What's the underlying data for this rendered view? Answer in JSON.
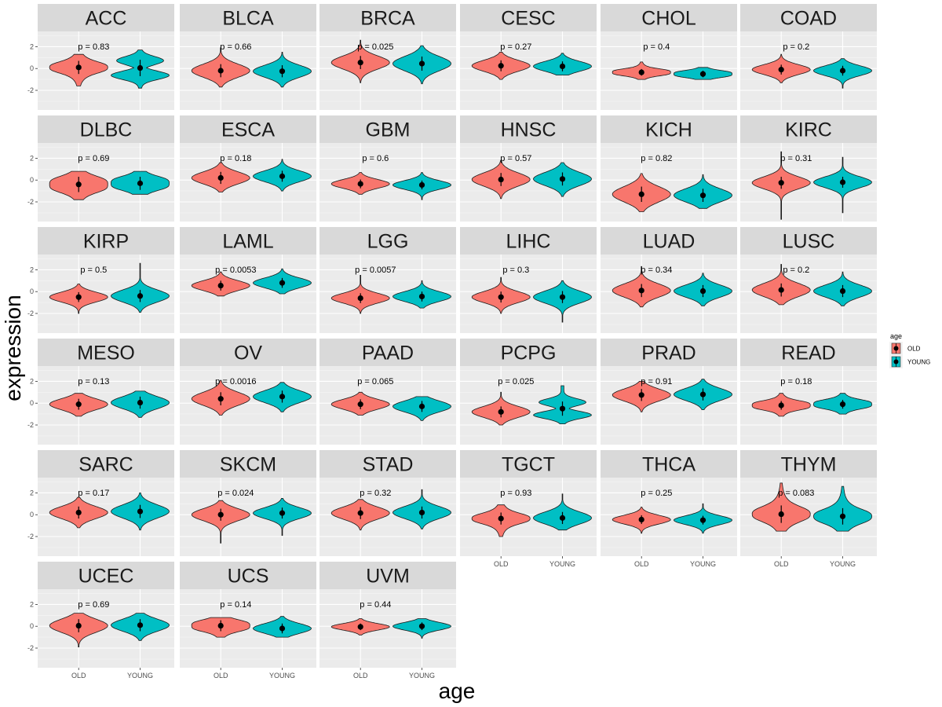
{
  "chart_data": {
    "type": "violin",
    "xlabel": "age",
    "ylabel": "expression",
    "ylim": [
      -3.8,
      3.4
    ],
    "yticks": [
      -2,
      0,
      2
    ],
    "ytick_labels": [
      "-2",
      "0",
      "2"
    ],
    "groups": [
      "OLD",
      "YOUNG"
    ],
    "legend": {
      "title": "age",
      "position": "right",
      "items": [
        {
          "label": "OLD",
          "color": "#F8766D"
        },
        {
          "label": "YOUNG",
          "color": "#00BFC4"
        }
      ]
    },
    "panels": [
      {
        "name": "ACC",
        "p": "p = 0.83",
        "old": {
          "mean": 0.1,
          "sd": 0.6,
          "lo": -1.6,
          "hi": 1.3,
          "shape": "wide"
        },
        "young": {
          "mean": 0.05,
          "sd": 0.75,
          "lo": -1.8,
          "hi": 1.7,
          "shape": "bimodal"
        }
      },
      {
        "name": "BLCA",
        "p": "p = 0.66",
        "old": {
          "mean": -0.2,
          "sd": 0.6,
          "lo": -1.7,
          "hi": 1.9,
          "shape": "norm"
        },
        "young": {
          "mean": -0.25,
          "sd": 0.55,
          "lo": -1.7,
          "hi": 1.5,
          "shape": "norm"
        }
      },
      {
        "name": "BRCA",
        "p": "p = 0.025",
        "old": {
          "mean": 0.55,
          "sd": 0.6,
          "lo": -1.3,
          "hi": 2.6,
          "shape": "norm"
        },
        "young": {
          "mean": 0.45,
          "sd": 0.65,
          "lo": -1.4,
          "hi": 2.1,
          "shape": "norm"
        }
      },
      {
        "name": "CESC",
        "p": "p = 0.27",
        "old": {
          "mean": 0.25,
          "sd": 0.5,
          "lo": -1.0,
          "hi": 1.5,
          "shape": "norm"
        },
        "young": {
          "mean": 0.2,
          "sd": 0.45,
          "lo": -0.6,
          "hi": 1.4,
          "shape": "norm"
        }
      },
      {
        "name": "CHOL",
        "p": "p = 0.4",
        "old": {
          "mean": -0.35,
          "sd": 0.3,
          "lo": -1.0,
          "hi": 0.6,
          "shape": "flat"
        },
        "young": {
          "mean": -0.5,
          "sd": 0.3,
          "lo": -1.0,
          "hi": 0.1,
          "shape": "flat"
        }
      },
      {
        "name": "COAD",
        "p": "p = 0.2",
        "old": {
          "mean": -0.1,
          "sd": 0.45,
          "lo": -1.3,
          "hi": 1.3,
          "shape": "norm"
        },
        "young": {
          "mean": -0.2,
          "sd": 0.45,
          "lo": -1.8,
          "hi": 0.9,
          "shape": "norm"
        }
      },
      {
        "name": "DLBC",
        "p": "p = 0.69",
        "old": {
          "mean": -0.4,
          "sd": 0.7,
          "lo": -1.8,
          "hi": 0.8,
          "shape": "flat"
        },
        "young": {
          "mean": -0.3,
          "sd": 0.6,
          "lo": -1.3,
          "hi": 0.8,
          "shape": "flat"
        }
      },
      {
        "name": "ESCA",
        "p": "p = 0.18",
        "old": {
          "mean": 0.2,
          "sd": 0.55,
          "lo": -1.1,
          "hi": 1.6,
          "shape": "norm"
        },
        "young": {
          "mean": 0.35,
          "sd": 0.5,
          "lo": -1.0,
          "hi": 1.9,
          "shape": "norm"
        }
      },
      {
        "name": "GBM",
        "p": "p = 0.6",
        "old": {
          "mean": -0.35,
          "sd": 0.4,
          "lo": -1.3,
          "hi": 0.7,
          "shape": "norm"
        },
        "young": {
          "mean": -0.45,
          "sd": 0.4,
          "lo": -1.8,
          "hi": 0.7,
          "shape": "norm"
        }
      },
      {
        "name": "HNSC",
        "p": "p = 0.57",
        "old": {
          "mean": 0.05,
          "sd": 0.6,
          "lo": -1.7,
          "hi": 1.8,
          "shape": "norm"
        },
        "young": {
          "mean": 0.1,
          "sd": 0.6,
          "lo": -1.5,
          "hi": 1.6,
          "shape": "norm"
        }
      },
      {
        "name": "KICH",
        "p": "p = 0.82",
        "old": {
          "mean": -1.3,
          "sd": 0.7,
          "lo": -2.9,
          "hi": 0.6,
          "shape": "norm"
        },
        "young": {
          "mean": -1.4,
          "sd": 0.6,
          "lo": -2.6,
          "hi": 0.5,
          "shape": "norm"
        }
      },
      {
        "name": "KIRC",
        "p": "p = 0.31",
        "old": {
          "mean": -0.25,
          "sd": 0.55,
          "lo": -3.6,
          "hi": 2.6,
          "shape": "norm"
        },
        "young": {
          "mean": -0.2,
          "sd": 0.5,
          "lo": -3.0,
          "hi": 2.1,
          "shape": "norm"
        }
      },
      {
        "name": "KIRP",
        "p": "p = 0.5",
        "old": {
          "mean": -0.5,
          "sd": 0.45,
          "lo": -2.0,
          "hi": 0.7,
          "shape": "norm"
        },
        "young": {
          "mean": -0.4,
          "sd": 0.55,
          "lo": -1.9,
          "hi": 2.6,
          "shape": "norm"
        }
      },
      {
        "name": "LAML",
        "p": "p = 0.0053",
        "old": {
          "mean": 0.55,
          "sd": 0.45,
          "lo": -0.4,
          "hi": 1.8,
          "shape": "norm"
        },
        "young": {
          "mean": 0.8,
          "sd": 0.45,
          "lo": -0.2,
          "hi": 2.1,
          "shape": "norm"
        }
      },
      {
        "name": "LGG",
        "p": "p = 0.0057",
        "old": {
          "mean": -0.6,
          "sd": 0.45,
          "lo": -2.0,
          "hi": 1.5,
          "shape": "norm"
        },
        "young": {
          "mean": -0.45,
          "sd": 0.45,
          "lo": -1.5,
          "hi": 1.0,
          "shape": "norm"
        }
      },
      {
        "name": "LIHC",
        "p": "p = 0.3",
        "old": {
          "mean": -0.5,
          "sd": 0.5,
          "lo": -2.0,
          "hi": 1.3,
          "shape": "norm"
        },
        "young": {
          "mean": -0.5,
          "sd": 0.55,
          "lo": -2.8,
          "hi": 1.0,
          "shape": "norm"
        }
      },
      {
        "name": "LUAD",
        "p": "p = 0.34",
        "old": {
          "mean": 0.1,
          "sd": 0.6,
          "lo": -1.4,
          "hi": 2.3,
          "shape": "norm"
        },
        "young": {
          "mean": 0.05,
          "sd": 0.55,
          "lo": -1.3,
          "hi": 1.7,
          "shape": "norm"
        }
      },
      {
        "name": "LUSC",
        "p": "p = 0.2",
        "old": {
          "mean": 0.15,
          "sd": 0.6,
          "lo": -1.2,
          "hi": 2.5,
          "shape": "norm"
        },
        "young": {
          "mean": 0.05,
          "sd": 0.55,
          "lo": -1.3,
          "hi": 1.8,
          "shape": "norm"
        }
      },
      {
        "name": "MESO",
        "p": "p = 0.13",
        "old": {
          "mean": -0.1,
          "sd": 0.5,
          "lo": -1.2,
          "hi": 0.9,
          "shape": "norm"
        },
        "young": {
          "mean": 0.05,
          "sd": 0.55,
          "lo": -1.3,
          "hi": 1.1,
          "shape": "norm"
        }
      },
      {
        "name": "OV",
        "p": "p = 0.0016",
        "old": {
          "mean": 0.4,
          "sd": 0.6,
          "lo": -1.1,
          "hi": 2.1,
          "shape": "norm"
        },
        "young": {
          "mean": 0.6,
          "sd": 0.55,
          "lo": -0.8,
          "hi": 1.9,
          "shape": "norm"
        }
      },
      {
        "name": "PAAD",
        "p": "p = 0.065",
        "old": {
          "mean": -0.1,
          "sd": 0.45,
          "lo": -1.1,
          "hi": 1.0,
          "shape": "norm"
        },
        "young": {
          "mean": -0.3,
          "sd": 0.5,
          "lo": -1.6,
          "hi": 0.6,
          "shape": "norm"
        }
      },
      {
        "name": "PCPG",
        "p": "p = 0.025",
        "old": {
          "mean": -0.8,
          "sd": 0.5,
          "lo": -2.0,
          "hi": 1.0,
          "shape": "norm"
        },
        "young": {
          "mean": -0.5,
          "sd": 0.65,
          "lo": -1.9,
          "hi": 1.6,
          "shape": "bimodal"
        }
      },
      {
        "name": "PRAD",
        "p": "p = 0.91",
        "old": {
          "mean": 0.75,
          "sd": 0.55,
          "lo": -0.8,
          "hi": 2.0,
          "shape": "norm"
        },
        "young": {
          "mean": 0.8,
          "sd": 0.55,
          "lo": -0.6,
          "hi": 2.2,
          "shape": "norm"
        }
      },
      {
        "name": "READ",
        "p": "p = 0.18",
        "old": {
          "mean": -0.2,
          "sd": 0.4,
          "lo": -1.2,
          "hi": 0.9,
          "shape": "flat"
        },
        "young": {
          "mean": -0.1,
          "sd": 0.4,
          "lo": -1.0,
          "hi": 0.9,
          "shape": "flat"
        }
      },
      {
        "name": "SARC",
        "p": "p = 0.17",
        "old": {
          "mean": 0.2,
          "sd": 0.55,
          "lo": -1.2,
          "hi": 1.6,
          "shape": "norm"
        },
        "young": {
          "mean": 0.3,
          "sd": 0.6,
          "lo": -1.4,
          "hi": 2.0,
          "shape": "norm"
        }
      },
      {
        "name": "SKCM",
        "p": "p = 0.024",
        "old": {
          "mean": 0.0,
          "sd": 0.55,
          "lo": -2.6,
          "hi": 1.3,
          "shape": "norm"
        },
        "young": {
          "mean": 0.15,
          "sd": 0.5,
          "lo": -1.9,
          "hi": 1.5,
          "shape": "norm"
        }
      },
      {
        "name": "STAD",
        "p": "p = 0.32",
        "old": {
          "mean": 0.15,
          "sd": 0.55,
          "lo": -1.4,
          "hi": 1.4,
          "shape": "norm"
        },
        "young": {
          "mean": 0.2,
          "sd": 0.55,
          "lo": -1.3,
          "hi": 2.3,
          "shape": "norm"
        }
      },
      {
        "name": "TGCT",
        "p": "p = 0.93",
        "old": {
          "mean": -0.35,
          "sd": 0.55,
          "lo": -2.0,
          "hi": 0.9,
          "shape": "wide"
        },
        "young": {
          "mean": -0.3,
          "sd": 0.55,
          "lo": -1.4,
          "hi": 1.9,
          "shape": "norm"
        }
      },
      {
        "name": "THCA",
        "p": "p = 0.25",
        "old": {
          "mean": -0.45,
          "sd": 0.4,
          "lo": -1.7,
          "hi": 0.7,
          "shape": "norm"
        },
        "young": {
          "mean": -0.5,
          "sd": 0.4,
          "lo": -1.7,
          "hi": 1.0,
          "shape": "norm"
        }
      },
      {
        "name": "THYM",
        "p": "p = 0.083",
        "old": {
          "mean": 0.05,
          "sd": 0.8,
          "lo": -1.5,
          "hi": 2.9,
          "shape": "wide"
        },
        "young": {
          "mean": -0.15,
          "sd": 0.75,
          "lo": -1.5,
          "hi": 2.6,
          "shape": "wide"
        }
      },
      {
        "name": "UCEC",
        "p": "p = 0.69",
        "old": {
          "mean": 0.05,
          "sd": 0.6,
          "lo": -1.9,
          "hi": 1.2,
          "shape": "norm"
        },
        "young": {
          "mean": 0.1,
          "sd": 0.55,
          "lo": -1.3,
          "hi": 1.2,
          "shape": "norm"
        }
      },
      {
        "name": "UCS",
        "p": "p = 0.14",
        "old": {
          "mean": 0.05,
          "sd": 0.5,
          "lo": -1.0,
          "hi": 0.8,
          "shape": "flat"
        },
        "young": {
          "mean": -0.2,
          "sd": 0.45,
          "lo": -1.0,
          "hi": 0.9,
          "shape": "norm"
        }
      },
      {
        "name": "UVM",
        "p": "p = 0.44",
        "old": {
          "mean": -0.05,
          "sd": 0.3,
          "lo": -0.8,
          "hi": 0.7,
          "shape": "norm"
        },
        "young": {
          "mean": 0.0,
          "sd": 0.35,
          "lo": -1.1,
          "hi": 0.7,
          "shape": "norm"
        }
      }
    ]
  }
}
